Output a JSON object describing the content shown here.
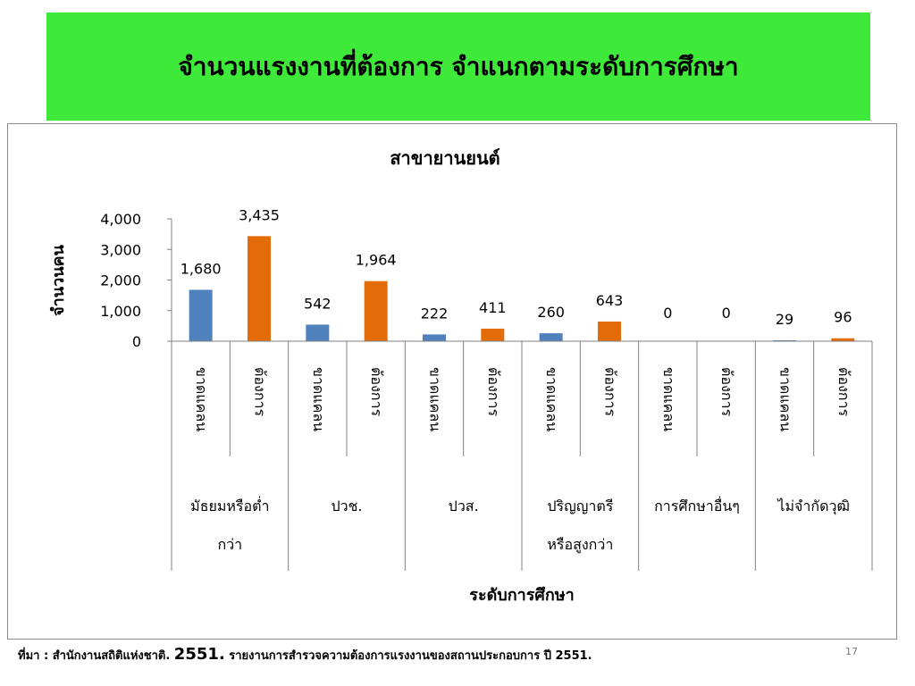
{
  "banner": {
    "title": "จำนวนแรงงานที่ต้องการ จำแนกตามระดับการศึกษา"
  },
  "colors": {
    "banner": "#3ee93a",
    "shortage": "#4f81bd",
    "demand": "#e36c09"
  },
  "chart_data": {
    "type": "bar",
    "title": "สาขายานยนต์",
    "ylabel": "จำนวนคน",
    "xlabel": "ระดับการศึกษา",
    "ylim": [
      0,
      4000
    ],
    "yticks": [
      0,
      1000,
      2000,
      3000,
      4000
    ],
    "ytick_labels": [
      "0",
      "1,000",
      "2,000",
      "3,000",
      "4,000"
    ],
    "grid": false,
    "legend": "none",
    "categories": [
      "มัธยมหรือต่ำกว่า",
      "ปวช.",
      "ปวส.",
      "ปริญญาตรีหรือสูงกว่า",
      "การศึกษาอื่นๆ",
      "ไม่จำกัดวุฒิ"
    ],
    "category_lines": [
      [
        "มัธยมหรือต่ำ",
        "กว่า"
      ],
      [
        "ปวช."
      ],
      [
        "ปวส."
      ],
      [
        "ปริญญาตรี",
        "หรือสูงกว่า"
      ],
      [
        "การศึกษาอื่นๆ"
      ],
      [
        "ไม่จำกัดวุฒิ"
      ]
    ],
    "sub_categories": [
      "ขาดแคลน",
      "ต้องการ"
    ],
    "series": [
      {
        "values": [
          1680,
          542,
          222,
          260,
          0,
          29
        ],
        "labels": [
          "1,680",
          "542",
          "222",
          "260",
          "0",
          "29"
        ]
      },
      {
        "values": [
          3435,
          1964,
          411,
          643,
          0,
          96
        ],
        "labels": [
          "3,435",
          "1,964",
          "411",
          "643",
          "0",
          "96"
        ]
      }
    ]
  },
  "footer": {
    "prefix": "ที่มา : สำนักงานสถิติแห่งชาติ.",
    "year": "2551.",
    "text": "รายงานการสำรวจความต้องการแรงงานของสถานประกอบการ ปี 2551.",
    "page": "17"
  }
}
